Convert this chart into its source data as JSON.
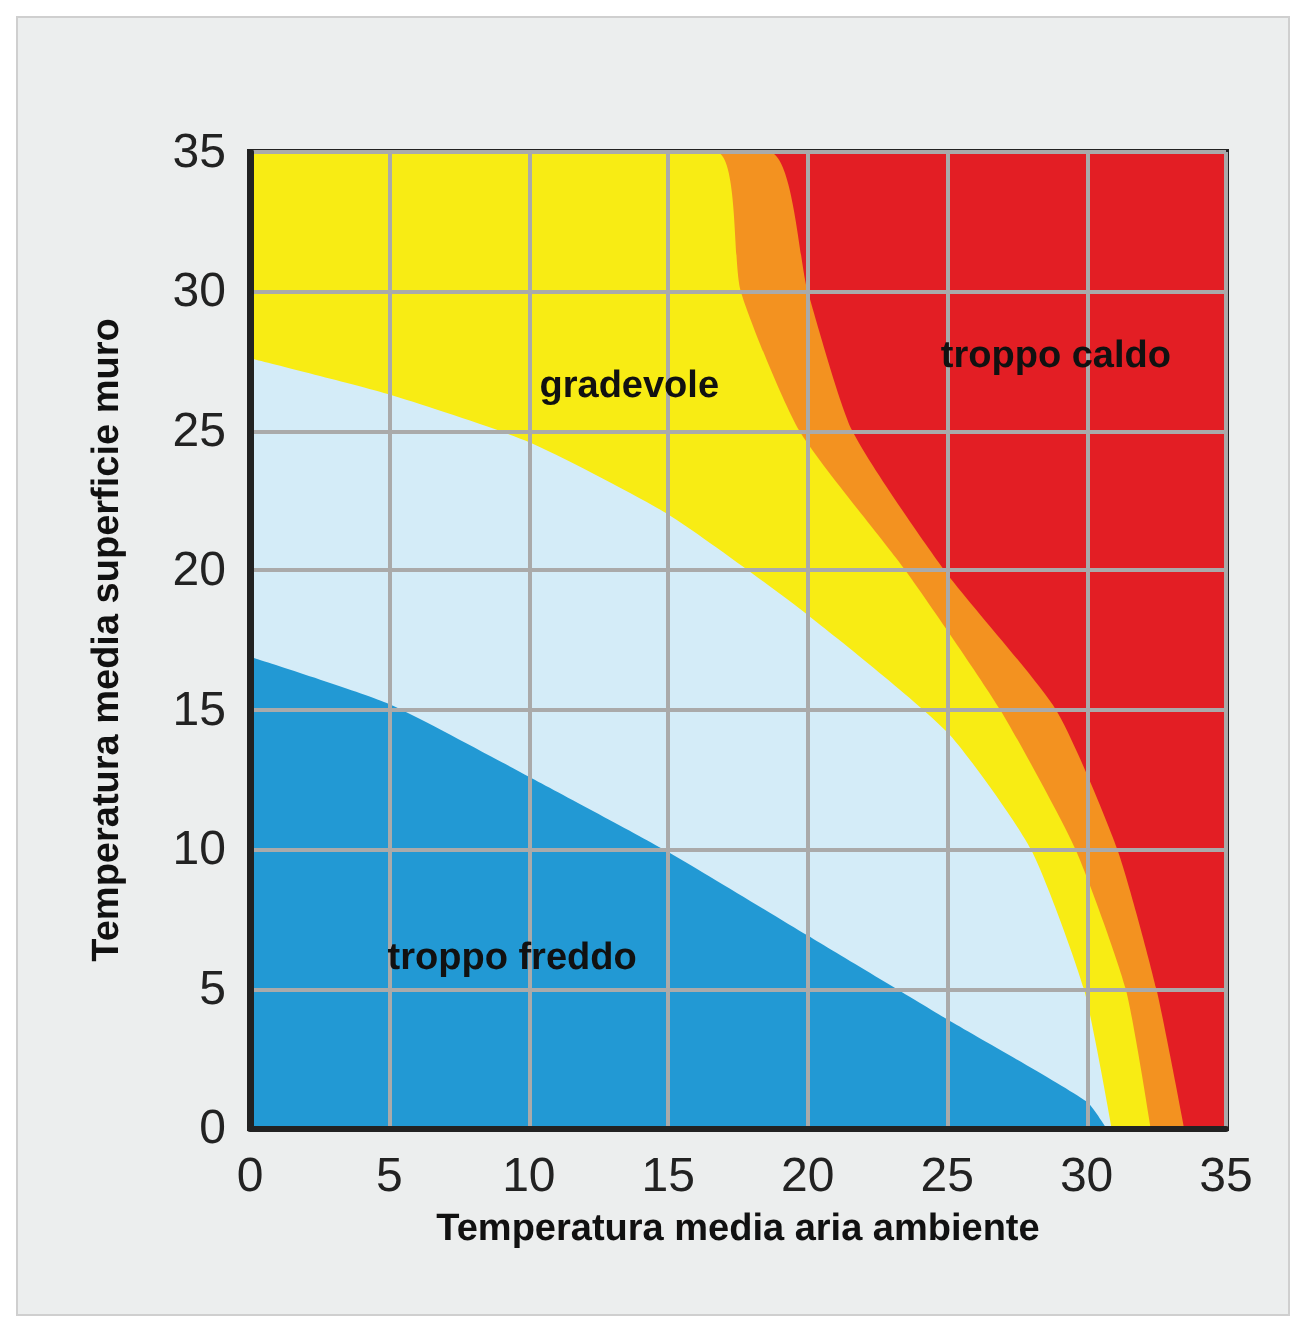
{
  "chart_data": {
    "type": "area",
    "xlabel": "Temperatura media aria ambiente",
    "ylabel": "Temperatura media superficie muro",
    "xlim": [
      0,
      35
    ],
    "ylim": [
      0,
      35
    ],
    "xticks": [
      0,
      5,
      10,
      15,
      20,
      25,
      30,
      35
    ],
    "yticks": [
      0,
      5,
      10,
      15,
      20,
      25,
      30,
      35
    ],
    "grid": true,
    "series": [
      {
        "color": "#e31e24",
        "x": [
          0,
          35
        ],
        "values": [
          35,
          35
        ]
      },
      {
        "color": "#f39220",
        "x": [
          0,
          18.6,
          20,
          21.6,
          24.9,
          28.9,
          31.1,
          32.5,
          33.5
        ],
        "values": [
          35,
          35,
          30,
          25,
          20,
          15,
          10,
          5,
          0
        ]
      },
      {
        "color": "#f8ec14",
        "x": [
          0,
          16.7,
          17.6,
          19.7,
          23.5,
          26.9,
          29.6,
          31.4,
          32.3
        ],
        "values": [
          35,
          35,
          30,
          25,
          20,
          15,
          10,
          5,
          0
        ]
      },
      {
        "color": "#d4ecf8",
        "x": [
          0,
          5,
          10,
          15,
          20,
          25,
          28,
          29.9,
          30.9
        ],
        "values": [
          27.6,
          26.3,
          24.6,
          22,
          18.4,
          14.2,
          10,
          5,
          0
        ]
      },
      {
        "color": "#2299d4",
        "x": [
          0,
          5,
          10,
          15,
          20,
          25,
          30,
          30.7
        ],
        "values": [
          16.9,
          15.2,
          12.6,
          9.9,
          6.9,
          3.9,
          0.95,
          0
        ]
      }
    ],
    "annotations": [
      "troppo freddo",
      "gradevole",
      "troppo caldo"
    ]
  }
}
